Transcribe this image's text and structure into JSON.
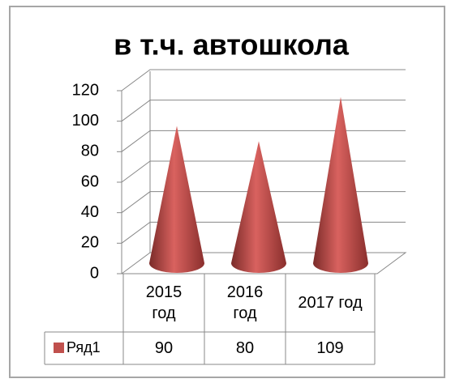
{
  "chart_data": {
    "type": "cone",
    "title": "в т.ч. автошкола",
    "categories": [
      "2015 год",
      "2016 год",
      "2017 год"
    ],
    "series": [
      {
        "name": "Ряд1",
        "color": "#c0504d",
        "values": [
          90,
          80,
          109
        ]
      }
    ],
    "ylim": [
      0,
      120
    ],
    "yticks": [
      0,
      20,
      40,
      60,
      80,
      100,
      120
    ],
    "grid": true
  }
}
